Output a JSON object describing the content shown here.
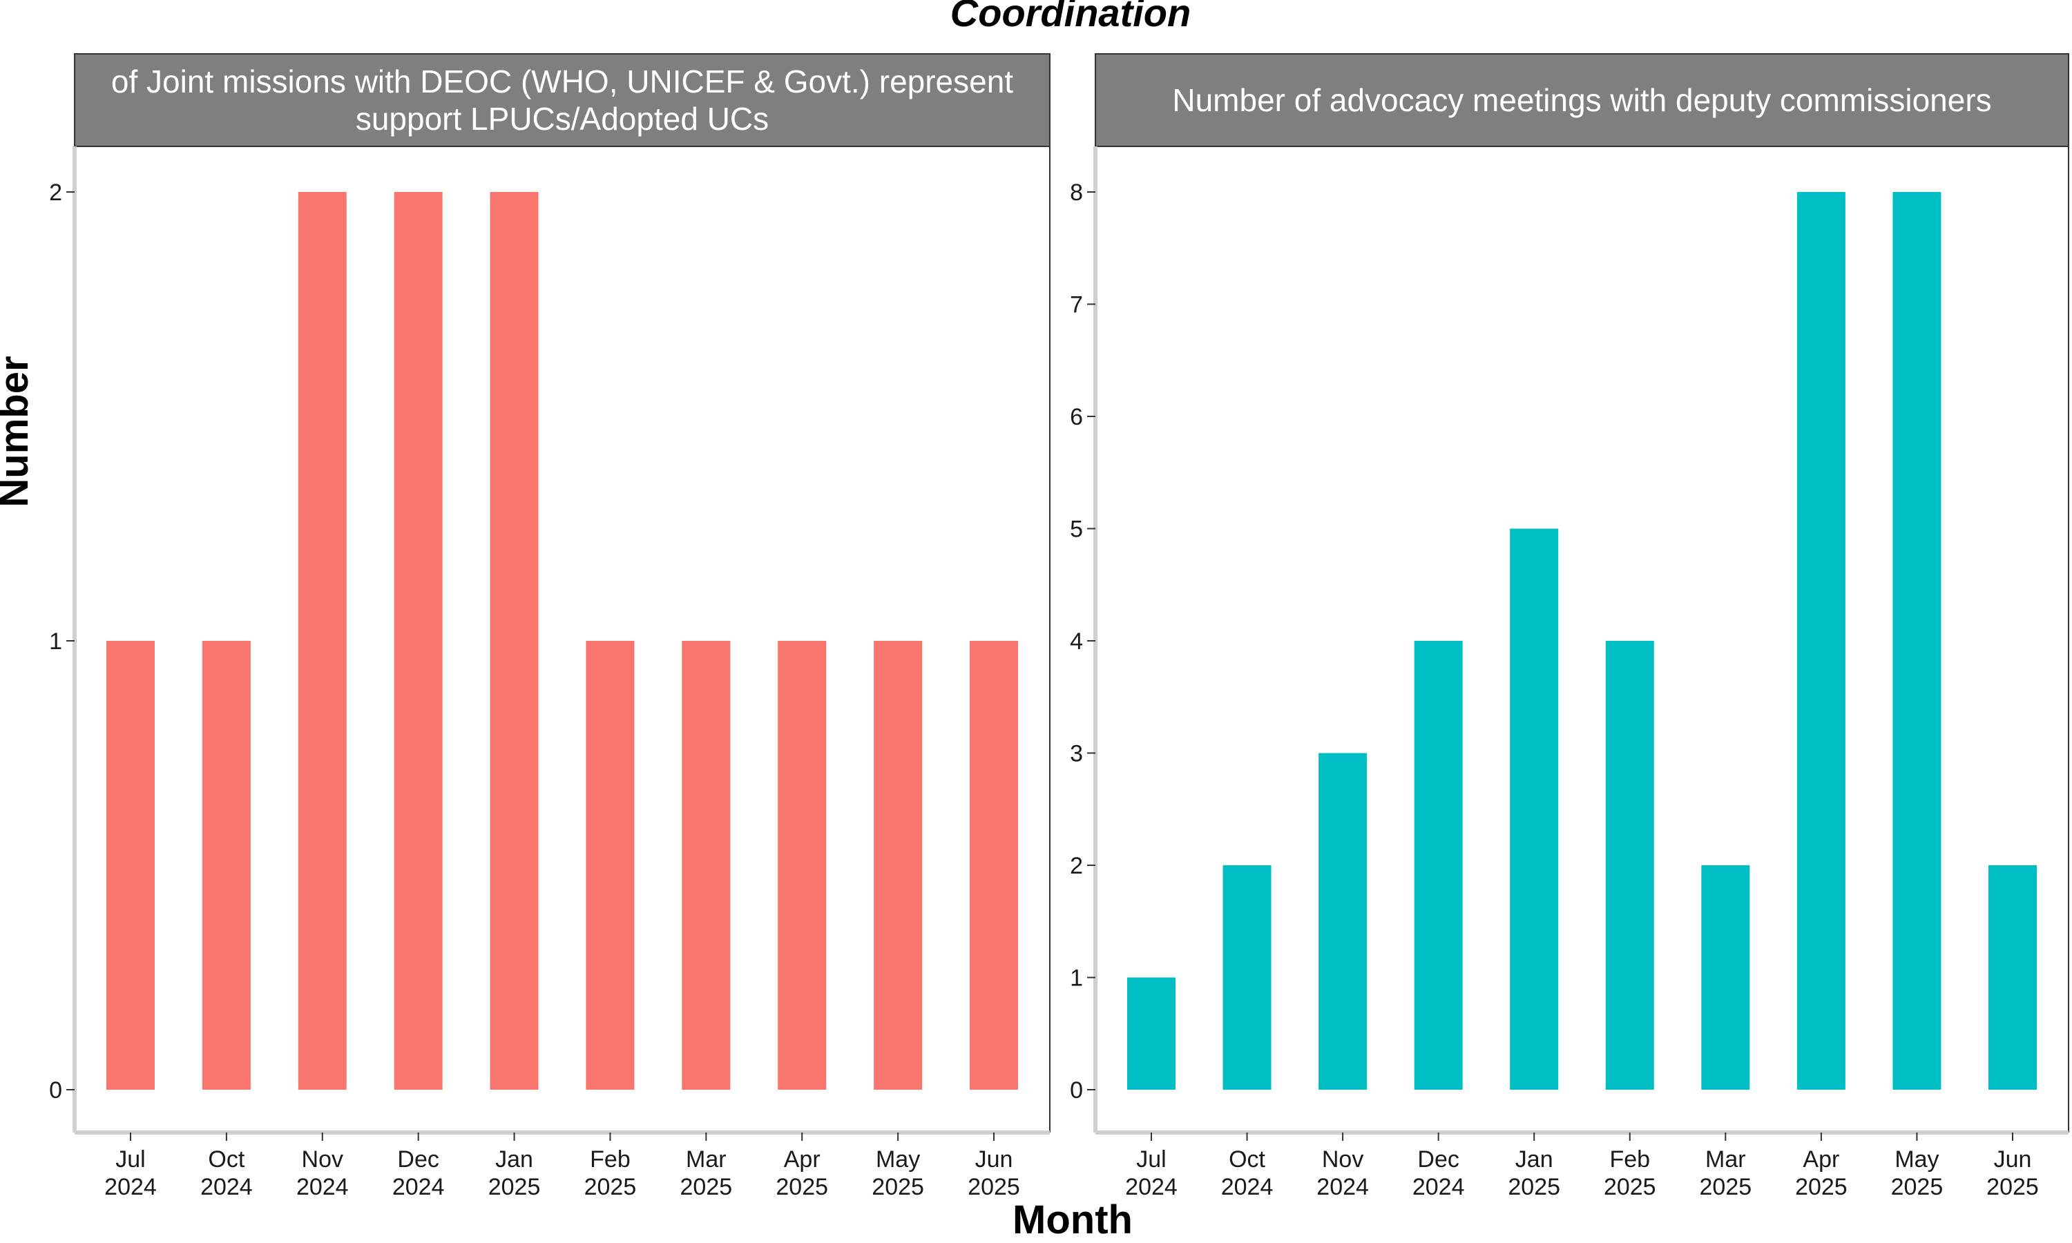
{
  "chart_data": {
    "type": "bar",
    "title": "Coordination",
    "xlabel": "Month",
    "ylabel": "Number",
    "grid": false,
    "legend": "none",
    "categories": [
      "Jul 2024",
      "Oct 2024",
      "Nov 2024",
      "Dec 2024",
      "Jan 2025",
      "Feb 2025",
      "Mar 2025",
      "Apr 2025",
      "May 2025",
      "Jun 2025"
    ],
    "panels": [
      {
        "strip": [
          "of Joint missions with DEOC (WHO, UNICEF & Govt.) represent",
          "support LPUCs/Adopted UCs"
        ],
        "color": "#F8766D",
        "ylim": [
          0,
          2
        ],
        "yticks": [
          0,
          1,
          2
        ],
        "values": [
          1,
          1,
          2,
          2,
          2,
          1,
          1,
          1,
          1,
          1
        ]
      },
      {
        "strip": [
          "Number of advocacy meetings with deputy commissioners"
        ],
        "color": "#00BFC4",
        "ylim": [
          0,
          8
        ],
        "yticks": [
          0,
          1,
          2,
          3,
          4,
          5,
          6,
          7,
          8
        ],
        "values": [
          1,
          2,
          3,
          4,
          5,
          4,
          2,
          8,
          8,
          2
        ]
      }
    ]
  }
}
